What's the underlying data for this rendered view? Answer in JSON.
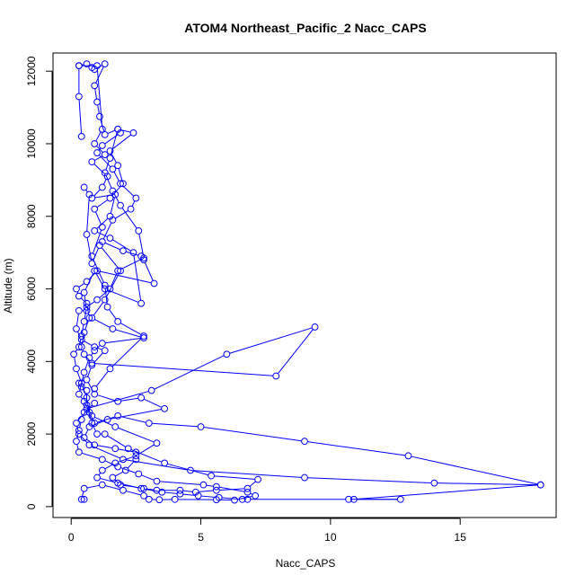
{
  "chart_data": {
    "type": "line",
    "title": "ATOM4 Northeast_Pacific_2 Nacc_CAPS",
    "xlabel": "Nacc_CAPS",
    "ylabel": "Altitude (m)",
    "xlim": [
      -0.7,
      18.7
    ],
    "ylim": [
      -300,
      12500
    ],
    "xticks": [
      0,
      5,
      10,
      15
    ],
    "yticks": [
      0,
      2000,
      4000,
      6000,
      8000,
      10000,
      12000
    ],
    "grid": false,
    "legend": "none",
    "series": [
      {
        "color": "#0000ff",
        "marker": "open-circle",
        "points": [
          [
            0.3,
            12150
          ],
          [
            0.6,
            12200
          ],
          [
            0.8,
            12100
          ],
          [
            0.9,
            12050
          ],
          [
            1.3,
            12200
          ],
          [
            0.9,
            11600
          ],
          [
            1.0,
            11150
          ],
          [
            1.1,
            10750
          ],
          [
            1.3,
            10250
          ],
          [
            1.8,
            10400
          ],
          [
            1.9,
            10300
          ],
          [
            1.2,
            9950
          ],
          [
            1.0,
            9750
          ],
          [
            1.6,
            9300
          ],
          [
            1.9,
            8900
          ],
          [
            2.5,
            8500
          ],
          [
            2.3,
            8200
          ],
          [
            1.6,
            7900
          ],
          [
            1.2,
            7300
          ],
          [
            2.0,
            7050
          ],
          [
            2.7,
            6900
          ],
          [
            2.8,
            6800
          ],
          [
            3.2,
            6150
          ],
          [
            1.0,
            6500
          ],
          [
            0.6,
            6200
          ],
          [
            0.2,
            6000
          ],
          [
            0.3,
            5800
          ],
          [
            0.6,
            5600
          ],
          [
            0.7,
            5200
          ],
          [
            0.5,
            4800
          ],
          [
            0.4,
            4400
          ],
          [
            0.5,
            4200
          ],
          [
            0.8,
            3950
          ],
          [
            7.9,
            3600
          ],
          [
            9.4,
            4950
          ],
          [
            6.0,
            4200
          ],
          [
            3.1,
            3200
          ],
          [
            0.6,
            2700
          ],
          [
            0.4,
            2400
          ],
          [
            0.3,
            2100
          ],
          [
            0.2,
            1800
          ],
          [
            0.3,
            1500
          ],
          [
            1.2,
            1300
          ],
          [
            1.8,
            1100
          ],
          [
            2.6,
            900
          ],
          [
            3.3,
            700
          ],
          [
            5.1,
            600
          ],
          [
            5.6,
            550
          ],
          [
            6.8,
            400
          ],
          [
            7.1,
            300
          ],
          [
            6.3,
            180
          ],
          [
            5.6,
            190
          ],
          [
            4.0,
            200
          ],
          [
            3.4,
            190
          ],
          [
            3.0,
            200
          ],
          [
            2.8,
            300
          ],
          [
            2.0,
            450
          ],
          [
            1.2,
            600
          ],
          [
            0.5,
            500
          ],
          [
            0.4,
            200
          ],
          [
            0.5,
            200
          ]
        ]
      },
      {
        "color": "#0000ff",
        "marker": "open-circle",
        "points": [
          [
            0.4,
            10200
          ],
          [
            0.3,
            11300
          ],
          [
            0.3,
            12150
          ],
          [
            1.0,
            12150
          ],
          [
            1.2,
            10400
          ],
          [
            0.9,
            10000
          ],
          [
            1.3,
            9700
          ],
          [
            0.8,
            9500
          ],
          [
            1.4,
            9100
          ],
          [
            1.2,
            8800
          ],
          [
            0.8,
            8500
          ],
          [
            1.7,
            8600
          ],
          [
            1.5,
            8000
          ],
          [
            0.9,
            7600
          ],
          [
            1.5,
            7400
          ],
          [
            2.4,
            7000
          ],
          [
            2.7,
            5600
          ],
          [
            1.3,
            6000
          ],
          [
            0.9,
            6500
          ],
          [
            0.5,
            5900
          ],
          [
            0.6,
            5400
          ],
          [
            0.3,
            5400
          ],
          [
            0.2,
            4900
          ],
          [
            0.4,
            4600
          ],
          [
            0.9,
            4400
          ],
          [
            1.3,
            4300
          ],
          [
            0.8,
            3900
          ],
          [
            0.6,
            3500
          ],
          [
            0.9,
            3100
          ],
          [
            1.8,
            2900
          ],
          [
            2.7,
            3000
          ],
          [
            3.6,
            2700
          ],
          [
            1.4,
            2400
          ],
          [
            0.7,
            2200
          ],
          [
            0.5,
            1900
          ],
          [
            0.9,
            1700
          ],
          [
            1.7,
            1600
          ],
          [
            2.5,
            1500
          ],
          [
            2.5,
            1300
          ],
          [
            2.1,
            1000
          ],
          [
            1.6,
            800
          ],
          [
            1.9,
            600
          ],
          [
            2.8,
            500
          ],
          [
            3.3,
            450
          ],
          [
            4.2,
            450
          ],
          [
            4.8,
            400
          ],
          [
            5.6,
            450
          ],
          [
            6.8,
            500
          ],
          [
            7.2,
            750
          ],
          [
            5.4,
            850
          ],
          [
            3.6,
            1200
          ],
          [
            2.2,
            1600
          ],
          [
            1.3,
            2000
          ],
          [
            1.0,
            2000
          ],
          [
            0.8,
            2300
          ],
          [
            0.6,
            2800
          ],
          [
            0.6,
            3200
          ],
          [
            0.4,
            3300
          ],
          [
            0.3,
            3400
          ]
        ]
      },
      {
        "color": "#0000ff",
        "marker": "open-circle",
        "points": [
          [
            0.5,
            8800
          ],
          [
            0.7,
            8600
          ],
          [
            0.6,
            7500
          ],
          [
            0.8,
            6700
          ],
          [
            1.1,
            7200
          ],
          [
            1.9,
            6500
          ],
          [
            1.3,
            5700
          ],
          [
            0.8,
            5200
          ],
          [
            1.6,
            4900
          ],
          [
            2.8,
            4650
          ],
          [
            1.2,
            4500
          ],
          [
            0.9,
            4300
          ],
          [
            0.7,
            4100
          ],
          [
            0.5,
            3700
          ],
          [
            0.3,
            3100
          ],
          [
            0.5,
            2900
          ],
          [
            0.8,
            2500
          ],
          [
            1.7,
            2200
          ],
          [
            3.3,
            1750
          ],
          [
            2.5,
            1400
          ],
          [
            1.7,
            1200
          ],
          [
            1.2,
            1000
          ],
          [
            1.0,
            800
          ],
          [
            1.8,
            650
          ],
          [
            2.7,
            500
          ],
          [
            3.5,
            400
          ],
          [
            4.2,
            350
          ],
          [
            4.9,
            300
          ],
          [
            5.7,
            250
          ],
          [
            6.6,
            200
          ],
          [
            6.8,
            200
          ],
          [
            10.7,
            200
          ],
          [
            12.7,
            200
          ],
          [
            10.9,
            200
          ],
          [
            18.1,
            600
          ],
          [
            14.0,
            650
          ],
          [
            9.0,
            800
          ],
          [
            4.6,
            1000
          ],
          [
            2.0,
            1300
          ],
          [
            0.7,
            1700
          ],
          [
            0.3,
            2000
          ],
          [
            0.2,
            2300
          ],
          [
            0.5,
            2600
          ],
          [
            0.9,
            2850
          ]
        ]
      },
      {
        "color": "#0000ff",
        "marker": "open-circle",
        "points": [
          [
            0.9,
            3250
          ],
          [
            1.5,
            3800
          ],
          [
            2.8,
            4700
          ],
          [
            1.8,
            5100
          ],
          [
            1.4,
            5500
          ],
          [
            1.3,
            6100
          ],
          [
            0.8,
            6900
          ],
          [
            1.2,
            7700
          ],
          [
            0.9,
            8200
          ],
          [
            1.5,
            8500
          ],
          [
            2.0,
            8900
          ],
          [
            1.8,
            9400
          ],
          [
            1.5,
            9800
          ],
          [
            2.4,
            10300
          ],
          [
            1.8,
            10400
          ],
          [
            1.5,
            9600
          ],
          [
            1.3,
            9200
          ],
          [
            1.6,
            8700
          ],
          [
            1.9,
            8300
          ],
          [
            2.6,
            7600
          ],
          [
            2.8,
            6850
          ],
          [
            1.8,
            6500
          ],
          [
            1.5,
            6000
          ],
          [
            1.0,
            5700
          ],
          [
            0.6,
            5500
          ],
          [
            0.5,
            5100
          ],
          [
            0.4,
            4700
          ],
          [
            0.3,
            4400
          ],
          [
            0.1,
            4200
          ],
          [
            0.2,
            3800
          ],
          [
            0.4,
            3400
          ],
          [
            0.6,
            3000
          ],
          [
            0.7,
            2600
          ],
          [
            0.9,
            2300
          ],
          [
            1.8,
            2500
          ],
          [
            3.0,
            2300
          ],
          [
            5.0,
            2200
          ],
          [
            9.0,
            1800
          ],
          [
            13.0,
            1400
          ],
          [
            18.1,
            600
          ]
        ]
      }
    ]
  }
}
